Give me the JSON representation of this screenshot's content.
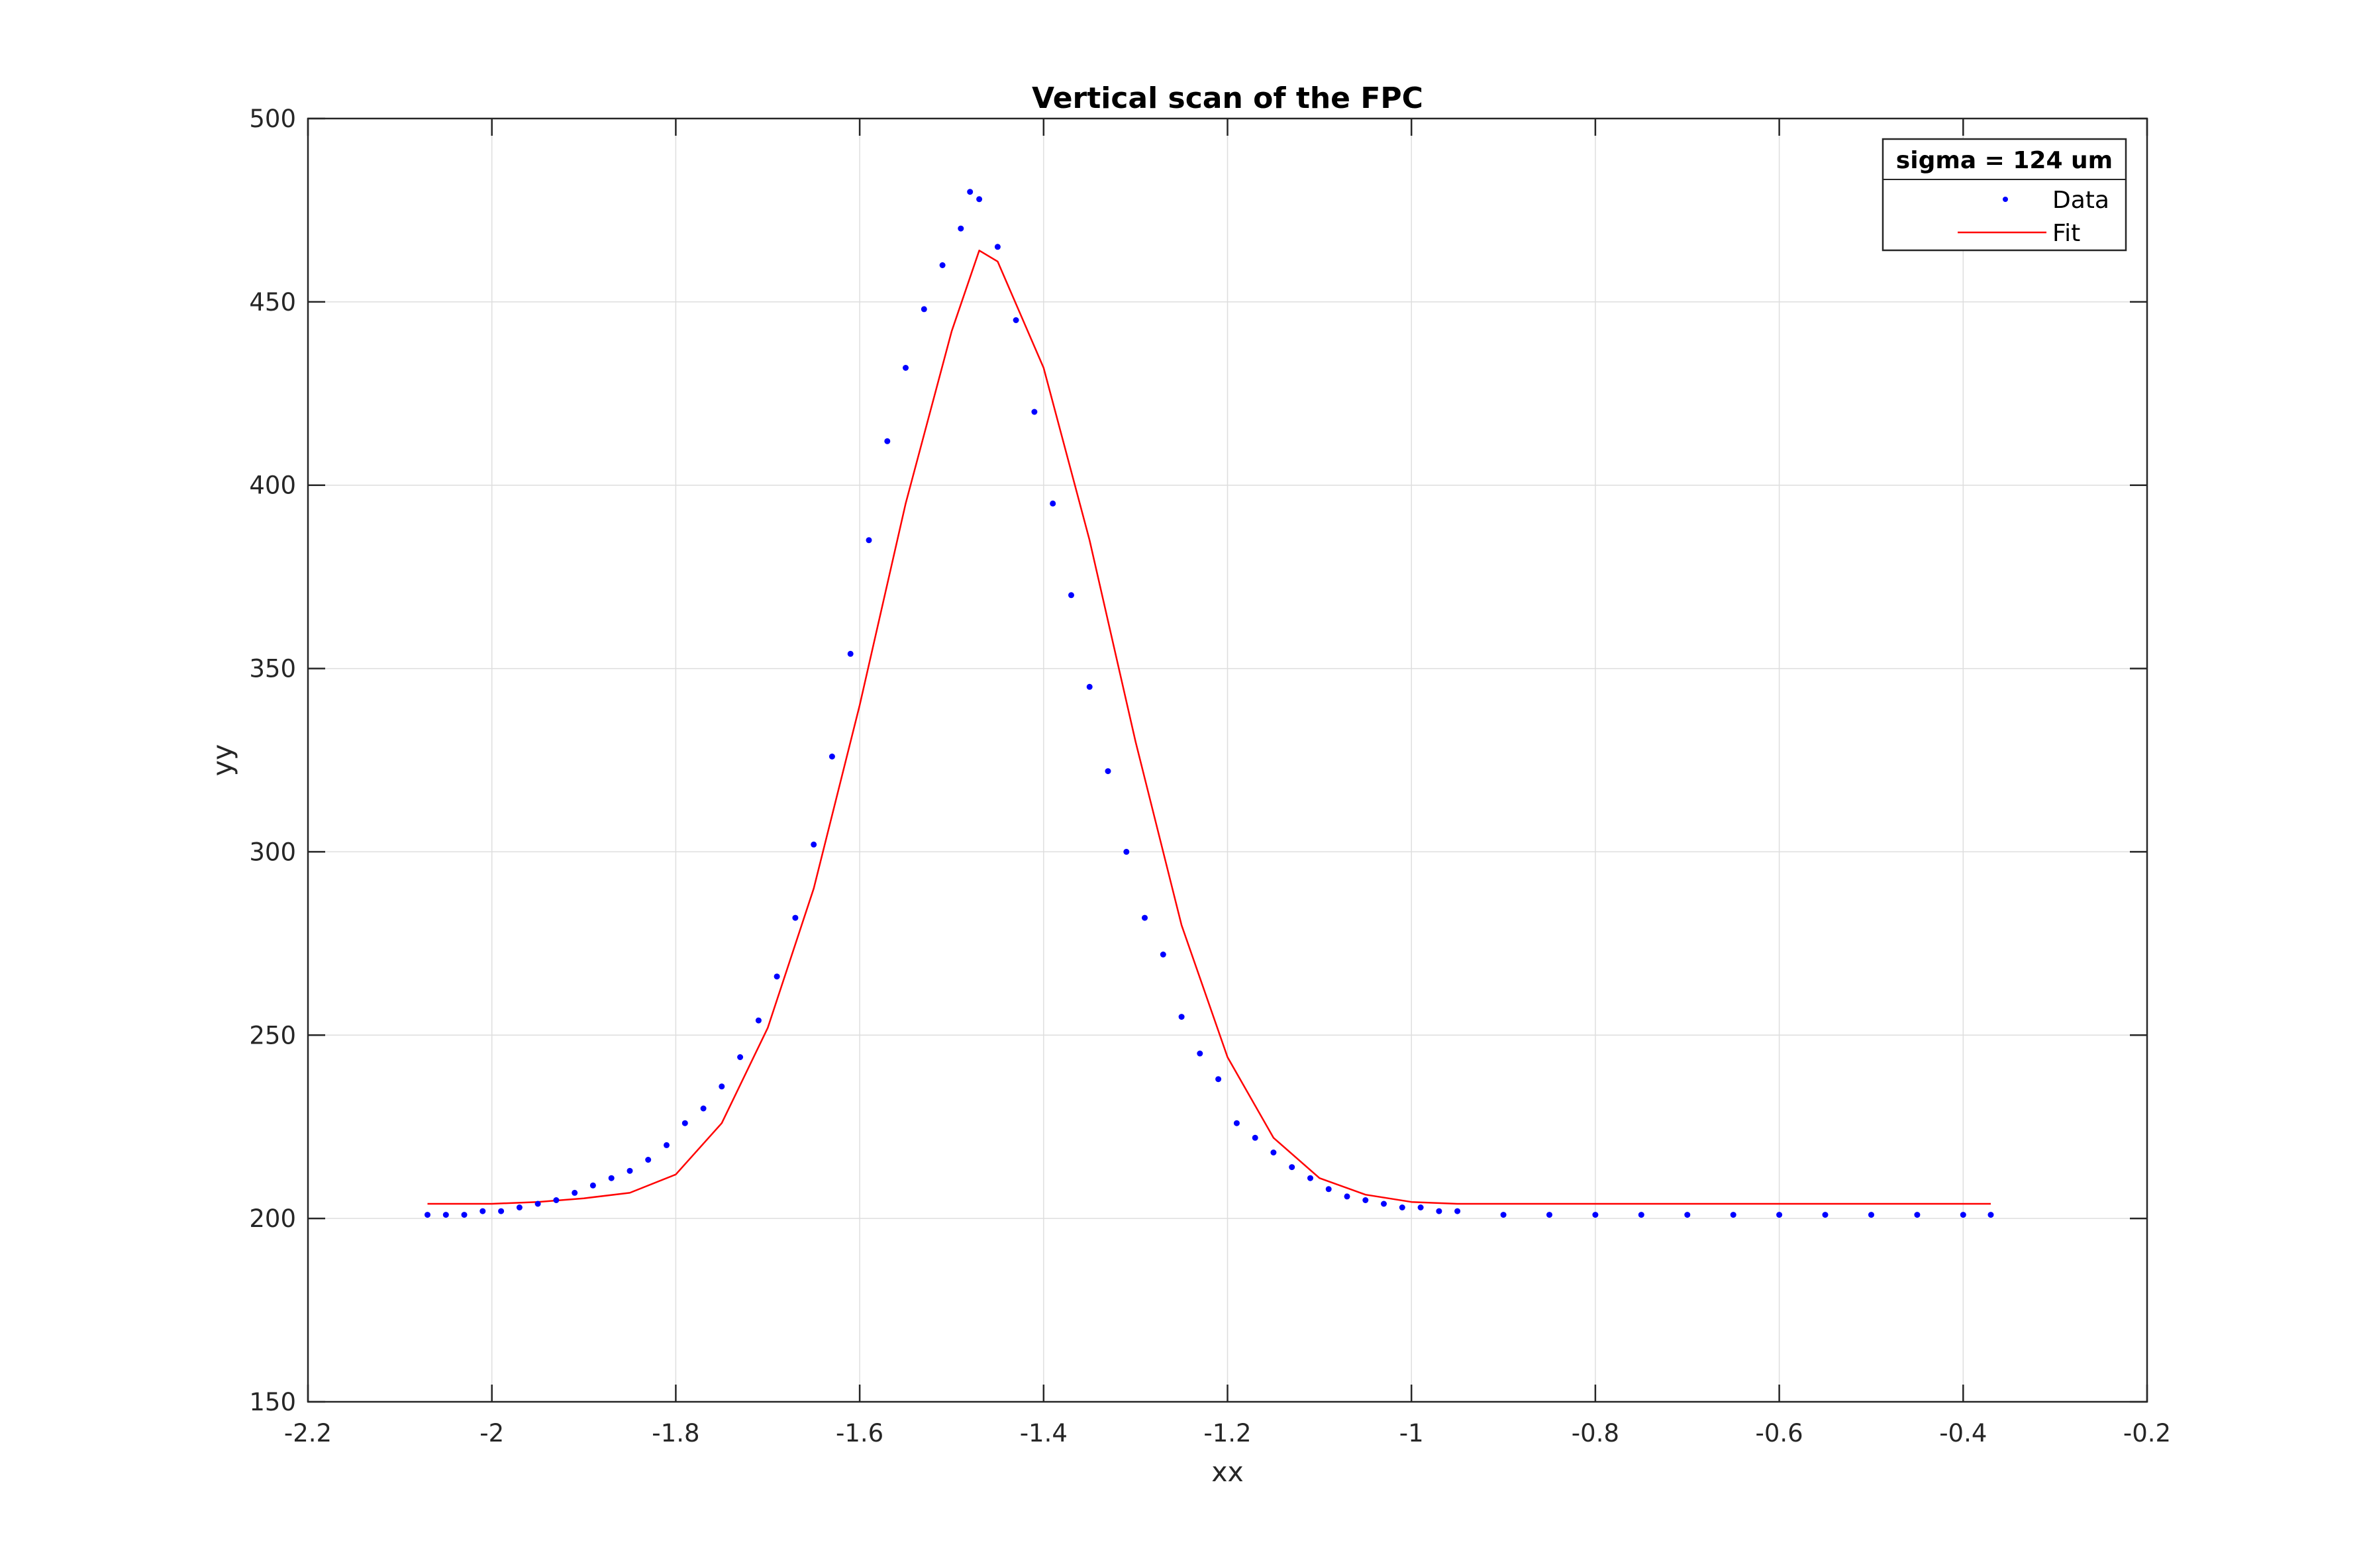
{
  "chart_data": {
    "type": "scatter",
    "title": "Vertical scan of the FPC",
    "xlabel": "xx",
    "ylabel": "yy",
    "xlim": [
      -2.2,
      -0.2
    ],
    "ylim": [
      150,
      500
    ],
    "xticks": [
      -2.2,
      -2,
      -1.8,
      -1.6,
      -1.4,
      -1.2,
      -1,
      -0.8,
      -0.6,
      -0.4,
      -0.2
    ],
    "yticks": [
      150,
      200,
      250,
      300,
      350,
      400,
      450,
      500
    ],
    "xtick_labels": [
      "-2.2",
      "-2",
      "-1.8",
      "-1.6",
      "-1.4",
      "-1.2",
      "-1",
      "-0.8",
      "-0.6",
      "-0.4",
      "-0.2"
    ],
    "ytick_labels": [
      "150",
      "200",
      "250",
      "300",
      "350",
      "400",
      "450",
      "500"
    ],
    "grid": true,
    "legend": {
      "title": "sigma = 124 um",
      "position": "top-right",
      "entries": [
        "Data",
        "Fit"
      ]
    },
    "series": [
      {
        "name": "Data",
        "style": "points",
        "color": "#0000ff",
        "x": [
          -2.07,
          -2.05,
          -2.03,
          -2.01,
          -1.99,
          -1.97,
          -1.95,
          -1.93,
          -1.91,
          -1.89,
          -1.87,
          -1.85,
          -1.83,
          -1.81,
          -1.79,
          -1.77,
          -1.75,
          -1.73,
          -1.71,
          -1.69,
          -1.67,
          -1.65,
          -1.63,
          -1.61,
          -1.59,
          -1.57,
          -1.55,
          -1.53,
          -1.51,
          -1.49,
          -1.48,
          -1.47,
          -1.45,
          -1.43,
          -1.41,
          -1.39,
          -1.37,
          -1.35,
          -1.33,
          -1.31,
          -1.29,
          -1.27,
          -1.25,
          -1.23,
          -1.21,
          -1.19,
          -1.17,
          -1.15,
          -1.13,
          -1.11,
          -1.09,
          -1.07,
          -1.05,
          -1.03,
          -1.01,
          -0.99,
          -0.97,
          -0.95,
          -0.9,
          -0.85,
          -0.8,
          -0.75,
          -0.7,
          -0.65,
          -0.6,
          -0.55,
          -0.5,
          -0.45,
          -0.4,
          -0.37
        ],
        "y": [
          201,
          201,
          201,
          202,
          202,
          203,
          204,
          205,
          207,
          209,
          211,
          213,
          216,
          220,
          226,
          230,
          236,
          244,
          254,
          266,
          282,
          302,
          326,
          354,
          385,
          412,
          432,
          448,
          460,
          470,
          480,
          478,
          465,
          445,
          420,
          395,
          370,
          345,
          322,
          300,
          282,
          272,
          255,
          245,
          238,
          226,
          222,
          218,
          214,
          211,
          208,
          206,
          205,
          204,
          203,
          203,
          202,
          202,
          201,
          201,
          201,
          201,
          201,
          201,
          201,
          201,
          201,
          201,
          201,
          201
        ]
      },
      {
        "name": "Fit",
        "style": "line",
        "color": "#ff0000",
        "x": [
          -2.07,
          -2.0,
          -1.95,
          -1.9,
          -1.85,
          -1.8,
          -1.75,
          -1.7,
          -1.65,
          -1.6,
          -1.55,
          -1.5,
          -1.47,
          -1.45,
          -1.4,
          -1.35,
          -1.3,
          -1.25,
          -1.2,
          -1.15,
          -1.1,
          -1.05,
          -1.0,
          -0.95,
          -0.9,
          -0.8,
          -0.6,
          -0.37
        ],
        "y": [
          204,
          204,
          204.5,
          205.5,
          207,
          212,
          226,
          252,
          290,
          340,
          395,
          442,
          464,
          461,
          432,
          385,
          330,
          280,
          244,
          222,
          211,
          206.5,
          204.5,
          204,
          204,
          204,
          204,
          204
        ]
      }
    ]
  }
}
